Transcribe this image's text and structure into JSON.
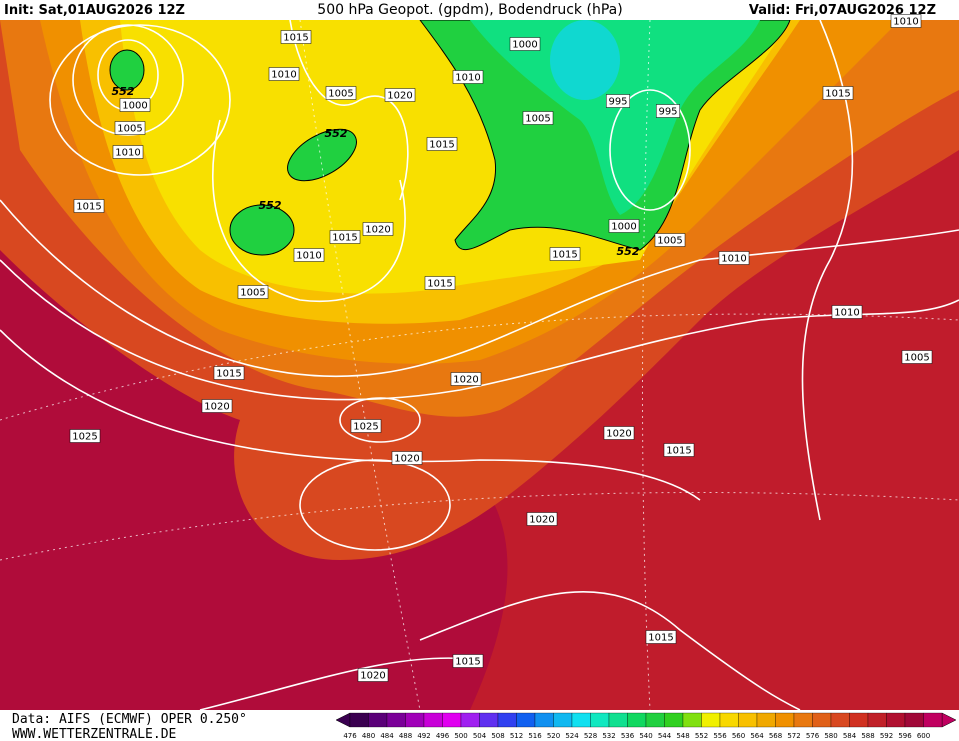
{
  "header": {
    "init": "Init: Sat,01AUG2026 12Z",
    "title": "500 hPa Geopot. (gpdm), Bodendruck (hPa)",
    "valid": "Valid: Fri,07AUG2026 12Z"
  },
  "map": {
    "isobar_labels": [
      "1015",
      "1010",
      "1000",
      "1005",
      "1010",
      "1005",
      "1020",
      "1010",
      "1000",
      "1005",
      "995",
      "995",
      "1015",
      "1015",
      "1015",
      "1020",
      "1010",
      "1005",
      "1015",
      "1015",
      "1000",
      "1005",
      "1010",
      "1015",
      "1010",
      "1010",
      "1005",
      "1015",
      "1020",
      "1020",
      "1025",
      "1025",
      "1020",
      "1015",
      "1020",
      "1020",
      "1015",
      "1015",
      "1020"
    ],
    "geopotential_labels": [
      "552",
      "552",
      "552",
      "552"
    ]
  },
  "footer": {
    "data": "Data: AIFS (ECMWF) OPER 0.250°",
    "site": "WWW.WETTERZENTRALE.DE"
  },
  "color_scale": {
    "labels": [
      476,
      480,
      484,
      488,
      492,
      496,
      500,
      504,
      508,
      512,
      516,
      520,
      524,
      528,
      532,
      536,
      540,
      544,
      548,
      552,
      556,
      560,
      564,
      568,
      572,
      576,
      580,
      584,
      588,
      592,
      596,
      600
    ],
    "colors": [
      "#3a0050",
      "#5a0078",
      "#7a0098",
      "#a000b8",
      "#c800d8",
      "#e000f0",
      "#a020f0",
      "#6030f0",
      "#3040f0",
      "#1060f0",
      "#1090f0",
      "#10b8f0",
      "#10e0f0",
      "#10e8c0",
      "#10e090",
      "#10d860",
      "#20d040",
      "#30d020",
      "#80e010",
      "#f0f000",
      "#f8d800",
      "#f8c000",
      "#f0a800",
      "#f09000",
      "#e87810",
      "#e06018",
      "#d84820",
      "#d03020",
      "#c02028",
      "#b01030",
      "#a00838",
      "#c00060"
    ]
  }
}
